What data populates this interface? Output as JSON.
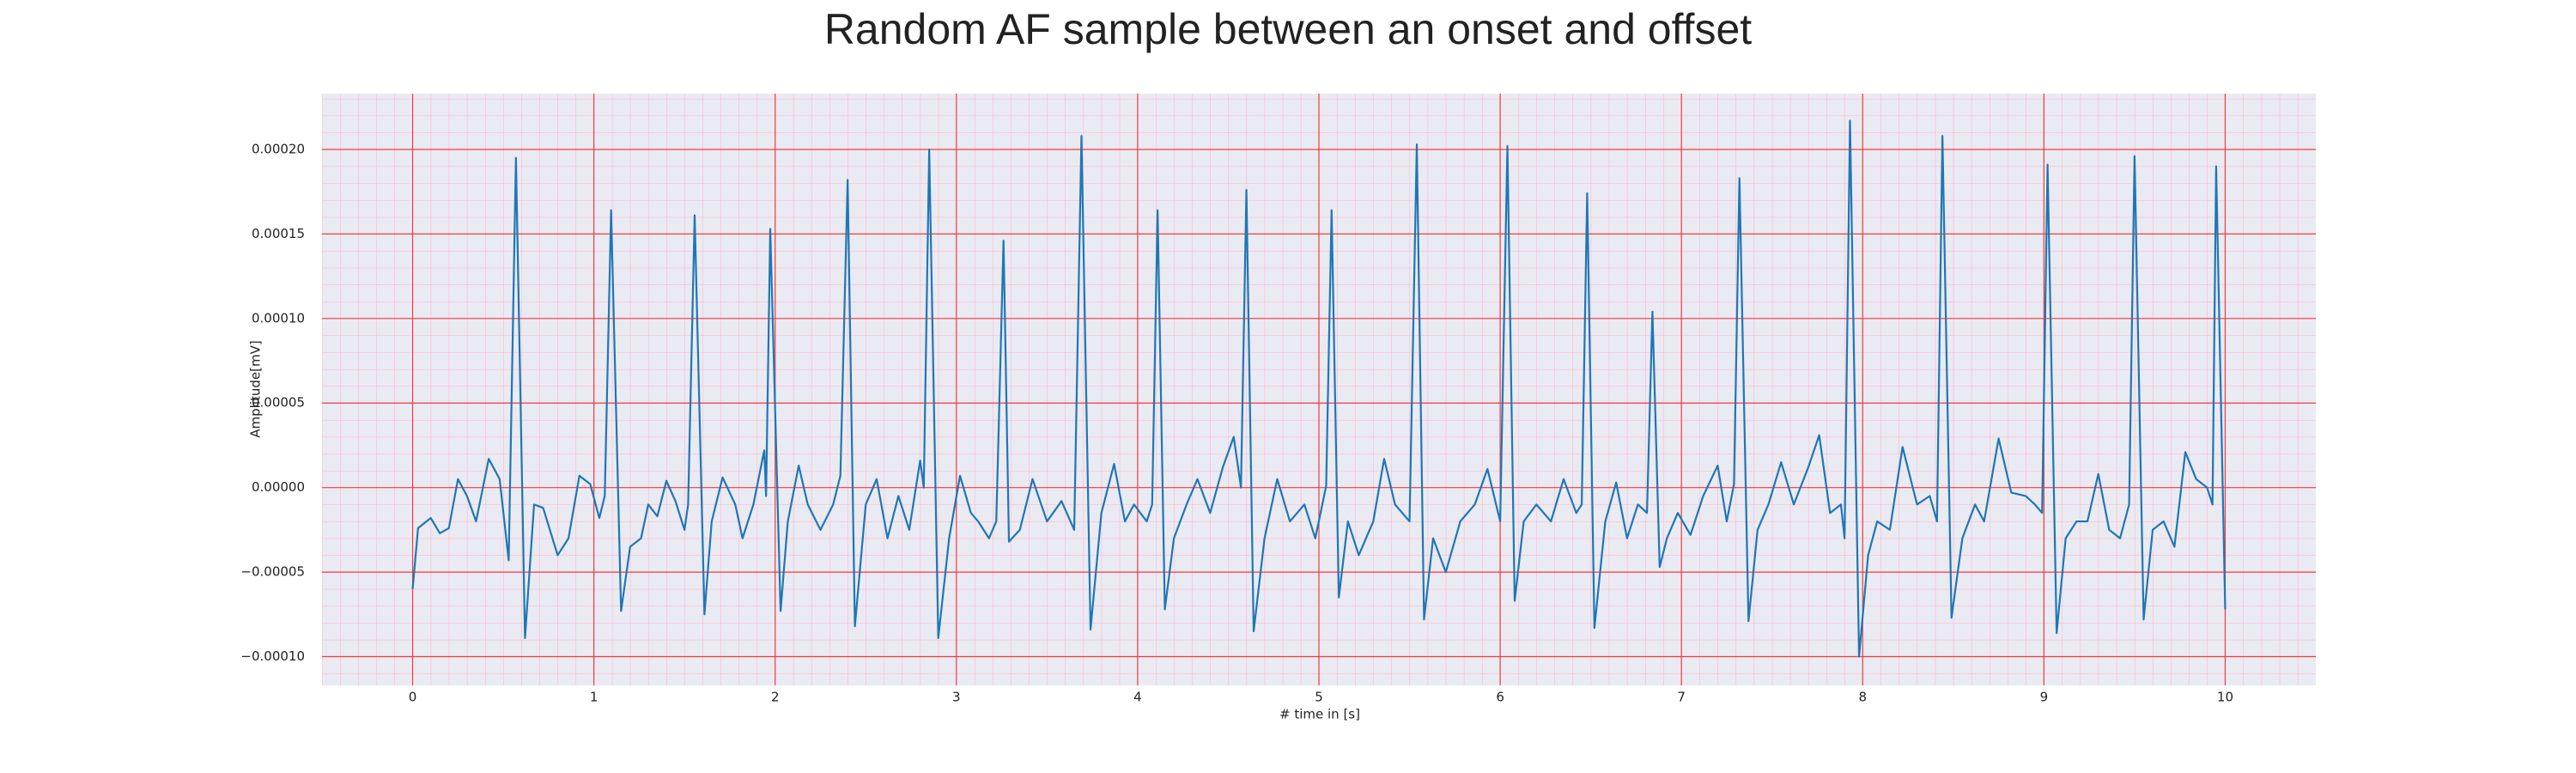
{
  "chart_data": {
    "type": "line",
    "title": "Random AF sample between an onset and offset",
    "xlabel": "# time in [s]",
    "ylabel": "Amplitude[mV]",
    "color": "#1f77b4",
    "grid": true,
    "minor_grid": true,
    "xlim": [
      -0.5,
      10.5
    ],
    "xticks": [
      0,
      1,
      2,
      3,
      4,
      5,
      6,
      7,
      8,
      9,
      10
    ],
    "ylim": [
      -0.000117,
      0.000233
    ],
    "yticks": [
      {
        "value": 0.0002,
        "label": "0.00020"
      },
      {
        "value": 0.00015,
        "label": "0.00015"
      },
      {
        "value": 0.0001,
        "label": "0.00010"
      },
      {
        "value": 5e-05,
        "label": "0.00005"
      },
      {
        "value": 0,
        "label": "0.00000"
      },
      {
        "value": -5e-05,
        "label": "−0.00005"
      },
      {
        "value": -0.0001,
        "label": "−0.00010"
      }
    ],
    "x": [
      0,
      0.03,
      0.1,
      0.15,
      0.2,
      0.25,
      0.3,
      0.35,
      0.42,
      0.48,
      0.53,
      0.57,
      0.62,
      0.67,
      0.72,
      0.8,
      0.86,
      0.92,
      0.98,
      1.03,
      1.06,
      1.095,
      1.15,
      1.2,
      1.26,
      1.3,
      1.35,
      1.4,
      1.45,
      1.5,
      1.52,
      1.556,
      1.61,
      1.65,
      1.71,
      1.78,
      1.82,
      1.88,
      1.94,
      1.95,
      1.973,
      2.03,
      2.07,
      2.13,
      2.18,
      2.25,
      2.32,
      2.36,
      2.4,
      2.44,
      2.5,
      2.56,
      2.62,
      2.68,
      2.74,
      2.8,
      2.82,
      2.85,
      2.9,
      2.96,
      3.02,
      3.08,
      3.12,
      3.18,
      3.22,
      3.26,
      3.29,
      3.35,
      3.42,
      3.5,
      3.58,
      3.65,
      3.69,
      3.74,
      3.8,
      3.87,
      3.93,
      3.98,
      4.05,
      4.08,
      4.11,
      4.15,
      4.2,
      4.27,
      4.33,
      4.4,
      4.47,
      4.53,
      4.57,
      4.6,
      4.64,
      4.7,
      4.77,
      4.84,
      4.92,
      4.98,
      5.04,
      5.07,
      5.11,
      5.16,
      5.22,
      5.3,
      5.36,
      5.42,
      5.5,
      5.54,
      5.58,
      5.63,
      5.7,
      5.78,
      5.86,
      5.93,
      6.0,
      6.04,
      6.08,
      6.13,
      6.2,
      6.28,
      6.35,
      6.42,
      6.45,
      6.48,
      6.52,
      6.58,
      6.64,
      6.7,
      6.76,
      6.81,
      6.84,
      6.88,
      6.92,
      6.98,
      7.05,
      7.12,
      7.2,
      7.25,
      7.29,
      7.32,
      7.37,
      7.42,
      7.48,
      7.55,
      7.62,
      7.7,
      7.76,
      7.82,
      7.88,
      7.9,
      7.93,
      7.98,
      8.03,
      8.08,
      8.15,
      8.22,
      8.3,
      8.37,
      8.41,
      8.44,
      8.49,
      8.55,
      8.62,
      8.67,
      8.75,
      8.82,
      8.9,
      8.95,
      8.99,
      9.02,
      9.07,
      9.12,
      9.18,
      9.24,
      9.3,
      9.36,
      9.42,
      9.47,
      9.5,
      9.55,
      9.6,
      9.66,
      9.72,
      9.78,
      9.84,
      9.9,
      9.93,
      9.95,
      10.0
    ],
    "values": [
      -6e-05,
      -2.4e-05,
      -1.8e-05,
      -2.7e-05,
      -2.4e-05,
      5e-06,
      -5e-06,
      -2e-05,
      1.7e-05,
      5e-06,
      -4.3e-05,
      0.000195,
      -8.9e-05,
      -1e-05,
      -1.2e-05,
      -4e-05,
      -3e-05,
      7e-06,
      2e-06,
      -1.8e-05,
      -5e-06,
      0.000164,
      -7.3e-05,
      -3.5e-05,
      -3e-05,
      -1e-05,
      -1.7e-05,
      4e-06,
      -8e-06,
      -2.5e-05,
      -1e-05,
      0.000161,
      -7.5e-05,
      -2e-05,
      6e-06,
      -1e-05,
      -3e-05,
      -1e-05,
      2.2e-05,
      -5e-06,
      0.000153,
      -7.3e-05,
      -2e-05,
      1.3e-05,
      -1e-05,
      -2.5e-05,
      -1e-05,
      7e-06,
      0.000182,
      -8.2e-05,
      -1e-05,
      5e-06,
      -3e-05,
      -5e-06,
      -2.5e-05,
      1.6e-05,
      0,
      0.0002,
      -8.9e-05,
      -3e-05,
      7e-06,
      -1.5e-05,
      -2e-05,
      -3e-05,
      -2e-05,
      0.000146,
      -3.2e-05,
      -2.5e-05,
      5e-06,
      -2e-05,
      -8e-06,
      -2.5e-05,
      0.000208,
      -8.4e-05,
      -1.5e-05,
      1.4e-05,
      -2e-05,
      -1e-05,
      -2e-05,
      -1e-05,
      0.000164,
      -7.2e-05,
      -3e-05,
      -1e-05,
      5e-06,
      -1.5e-05,
      1.2e-05,
      3e-05,
      0,
      0.000176,
      -8.5e-05,
      -3e-05,
      5e-06,
      -2e-05,
      -1e-05,
      -3e-05,
      1e-06,
      0.000164,
      -6.5e-05,
      -2e-05,
      -4e-05,
      -2e-05,
      1.7e-05,
      -1e-05,
      -2e-05,
      0.000203,
      -7.8e-05,
      -3e-05,
      -5e-05,
      -2e-05,
      -1e-05,
      1.1e-05,
      -2e-05,
      0.000202,
      -6.7e-05,
      -2e-05,
      -1e-05,
      -2e-05,
      5e-06,
      -1.5e-05,
      -1e-05,
      0.000174,
      -8.3e-05,
      -2e-05,
      3e-06,
      -3e-05,
      -1e-05,
      -1.5e-05,
      0.000104,
      -4.7e-05,
      -3e-05,
      -1.5e-05,
      -2.8e-05,
      -5e-06,
      1.3e-05,
      -2e-05,
      2e-06,
      0.000183,
      -7.9e-05,
      -2.5e-05,
      -1e-05,
      1.5e-05,
      -1e-05,
      1.2e-05,
      3.1e-05,
      -1.5e-05,
      -1e-05,
      -3e-05,
      0.000217,
      -0.0001,
      -4e-05,
      -2e-05,
      -2.5e-05,
      2.4e-05,
      -1e-05,
      -5e-06,
      -2e-05,
      0.000208,
      -7.7e-05,
      -3e-05,
      -1e-05,
      -2e-05,
      2.9e-05,
      -3e-06,
      -5e-06,
      -1e-05,
      -1.5e-05,
      0.000191,
      -8.6e-05,
      -3e-05,
      -2e-05,
      -2e-05,
      8e-06,
      -2.5e-05,
      -3e-05,
      -1e-05,
      0.000196,
      -7.8e-05,
      -2.5e-05,
      -2e-05,
      -3.5e-05,
      2.1e-05,
      5e-06,
      0,
      -1e-05,
      0.00019,
      -7.2e-05
    ]
  }
}
